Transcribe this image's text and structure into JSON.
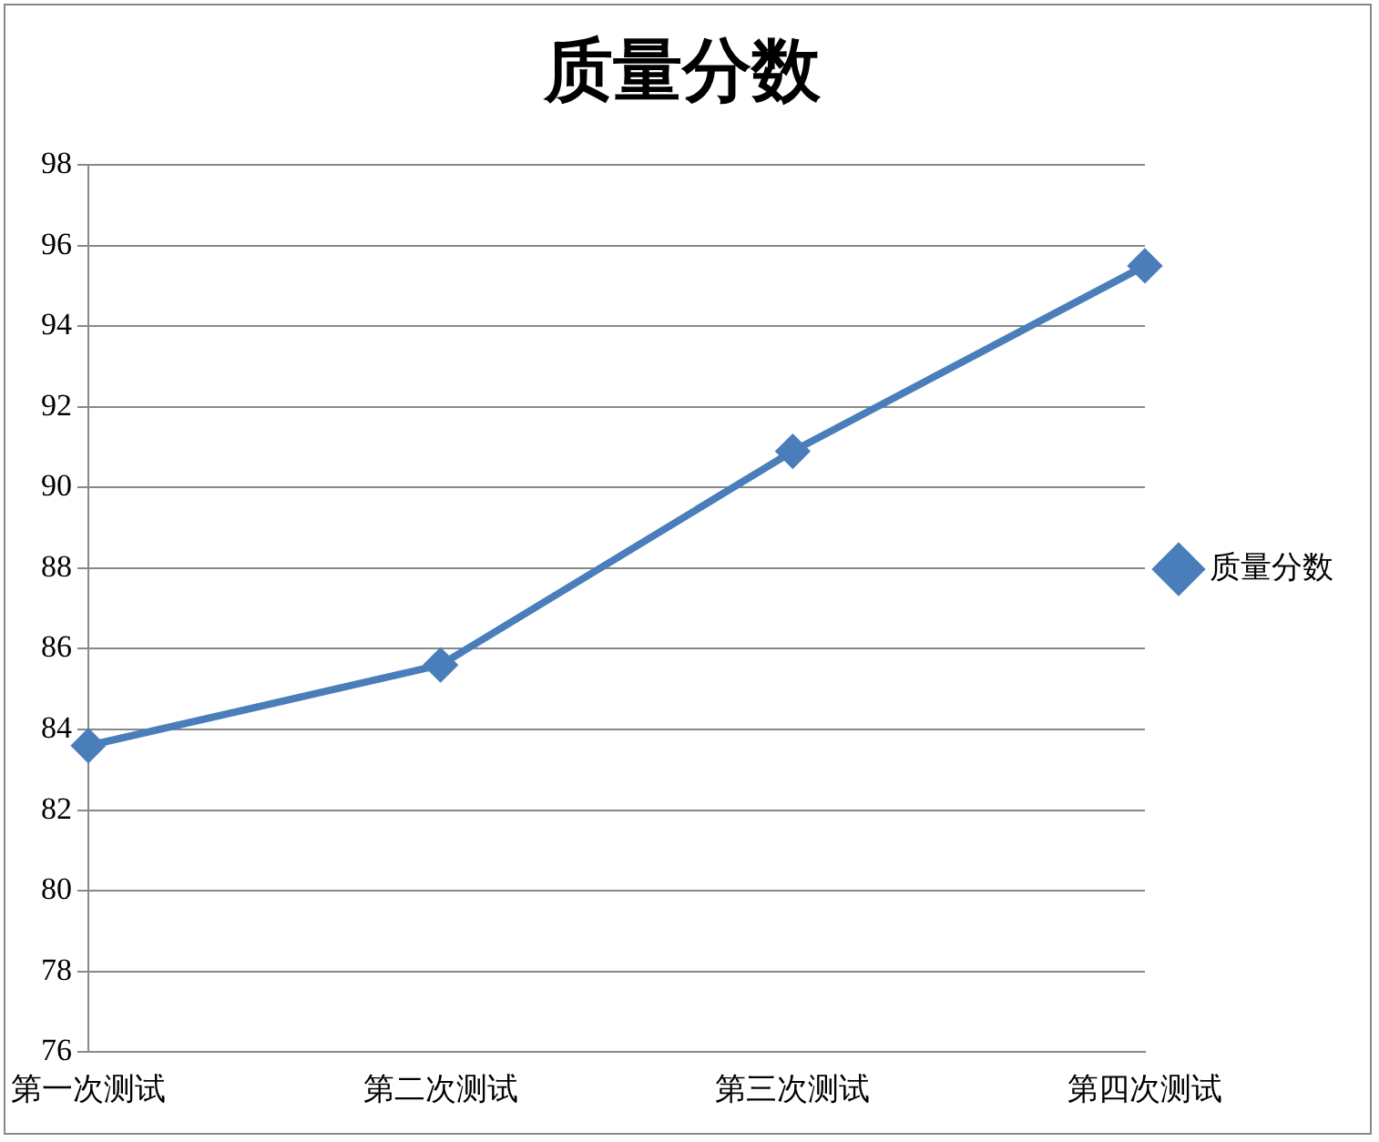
{
  "chart_data": {
    "type": "line",
    "title": "质量分数",
    "categories": [
      "第一次测试",
      "第二次测试",
      "第三次测试",
      "第四次测试"
    ],
    "series": [
      {
        "name": "质量分数",
        "color": "#4a7ebb",
        "values": [
          83.6,
          85.6,
          90.9,
          95.5
        ]
      }
    ],
    "ylim": [
      76,
      98
    ],
    "yticks": [
      76,
      78,
      80,
      82,
      84,
      86,
      88,
      90,
      92,
      94,
      96,
      98
    ],
    "grid": "y",
    "legend": "right",
    "marker": "diamond",
    "line_style": "solid"
  }
}
